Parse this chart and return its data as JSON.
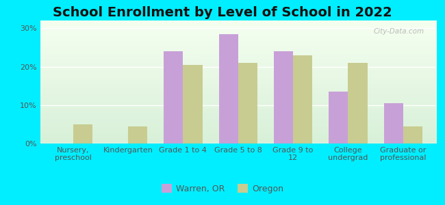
{
  "title": "School Enrollment by Level of School in 2022",
  "categories": [
    "Nursery,\npreschool",
    "Kindergarten",
    "Grade 1 to 4",
    "Grade 5 to 8",
    "Grade 9 to\n12",
    "College\nundergrad",
    "Graduate or\nprofessional"
  ],
  "warren_values": [
    0,
    0,
    24,
    28.5,
    24,
    13.5,
    10.5
  ],
  "oregon_values": [
    5,
    4.5,
    20.5,
    21,
    23,
    21,
    4.5
  ],
  "warren_color": "#c8a0d8",
  "oregon_color": "#c8cc90",
  "background_color": "#00eeff",
  "ylim": [
    0,
    32
  ],
  "yticks": [
    0,
    10,
    20,
    30
  ],
  "ytick_labels": [
    "0%",
    "10%",
    "20%",
    "30%"
  ],
  "legend_warren": "Warren, OR",
  "legend_oregon": "Oregon",
  "watermark": "City-Data.com",
  "title_fontsize": 14,
  "tick_fontsize": 8,
  "legend_fontsize": 9
}
